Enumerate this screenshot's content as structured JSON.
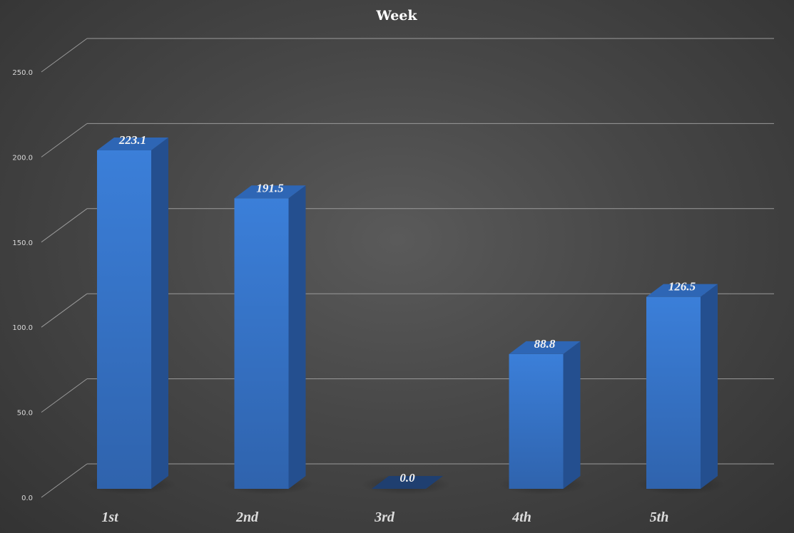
{
  "chart_data": {
    "type": "bar",
    "title": "Week",
    "categories": [
      "1st",
      "2nd",
      "3rd",
      "4th",
      "5th"
    ],
    "values": [
      223.1,
      191.5,
      0.0,
      88.8,
      126.5
    ],
    "value_labels": [
      "223.1",
      "191.5",
      "0.0",
      "88.8",
      "126.5"
    ],
    "ylim": [
      0,
      250
    ],
    "yticks": [
      0,
      50,
      100,
      150,
      200,
      250
    ],
    "ytick_labels": [
      "0.0",
      "50.0",
      "100.0",
      "150.0",
      "200.0",
      "250.0"
    ],
    "xlabel": "",
    "ylabel": "",
    "grid": true,
    "legend": "none",
    "style": "3d-column",
    "colors": {
      "bar_front": "#3a7bd5",
      "bar_side": "#244f8f",
      "bar_top": "#2e66b5",
      "background": "#4a4a4a",
      "gridline": "#9a9a9a"
    }
  }
}
